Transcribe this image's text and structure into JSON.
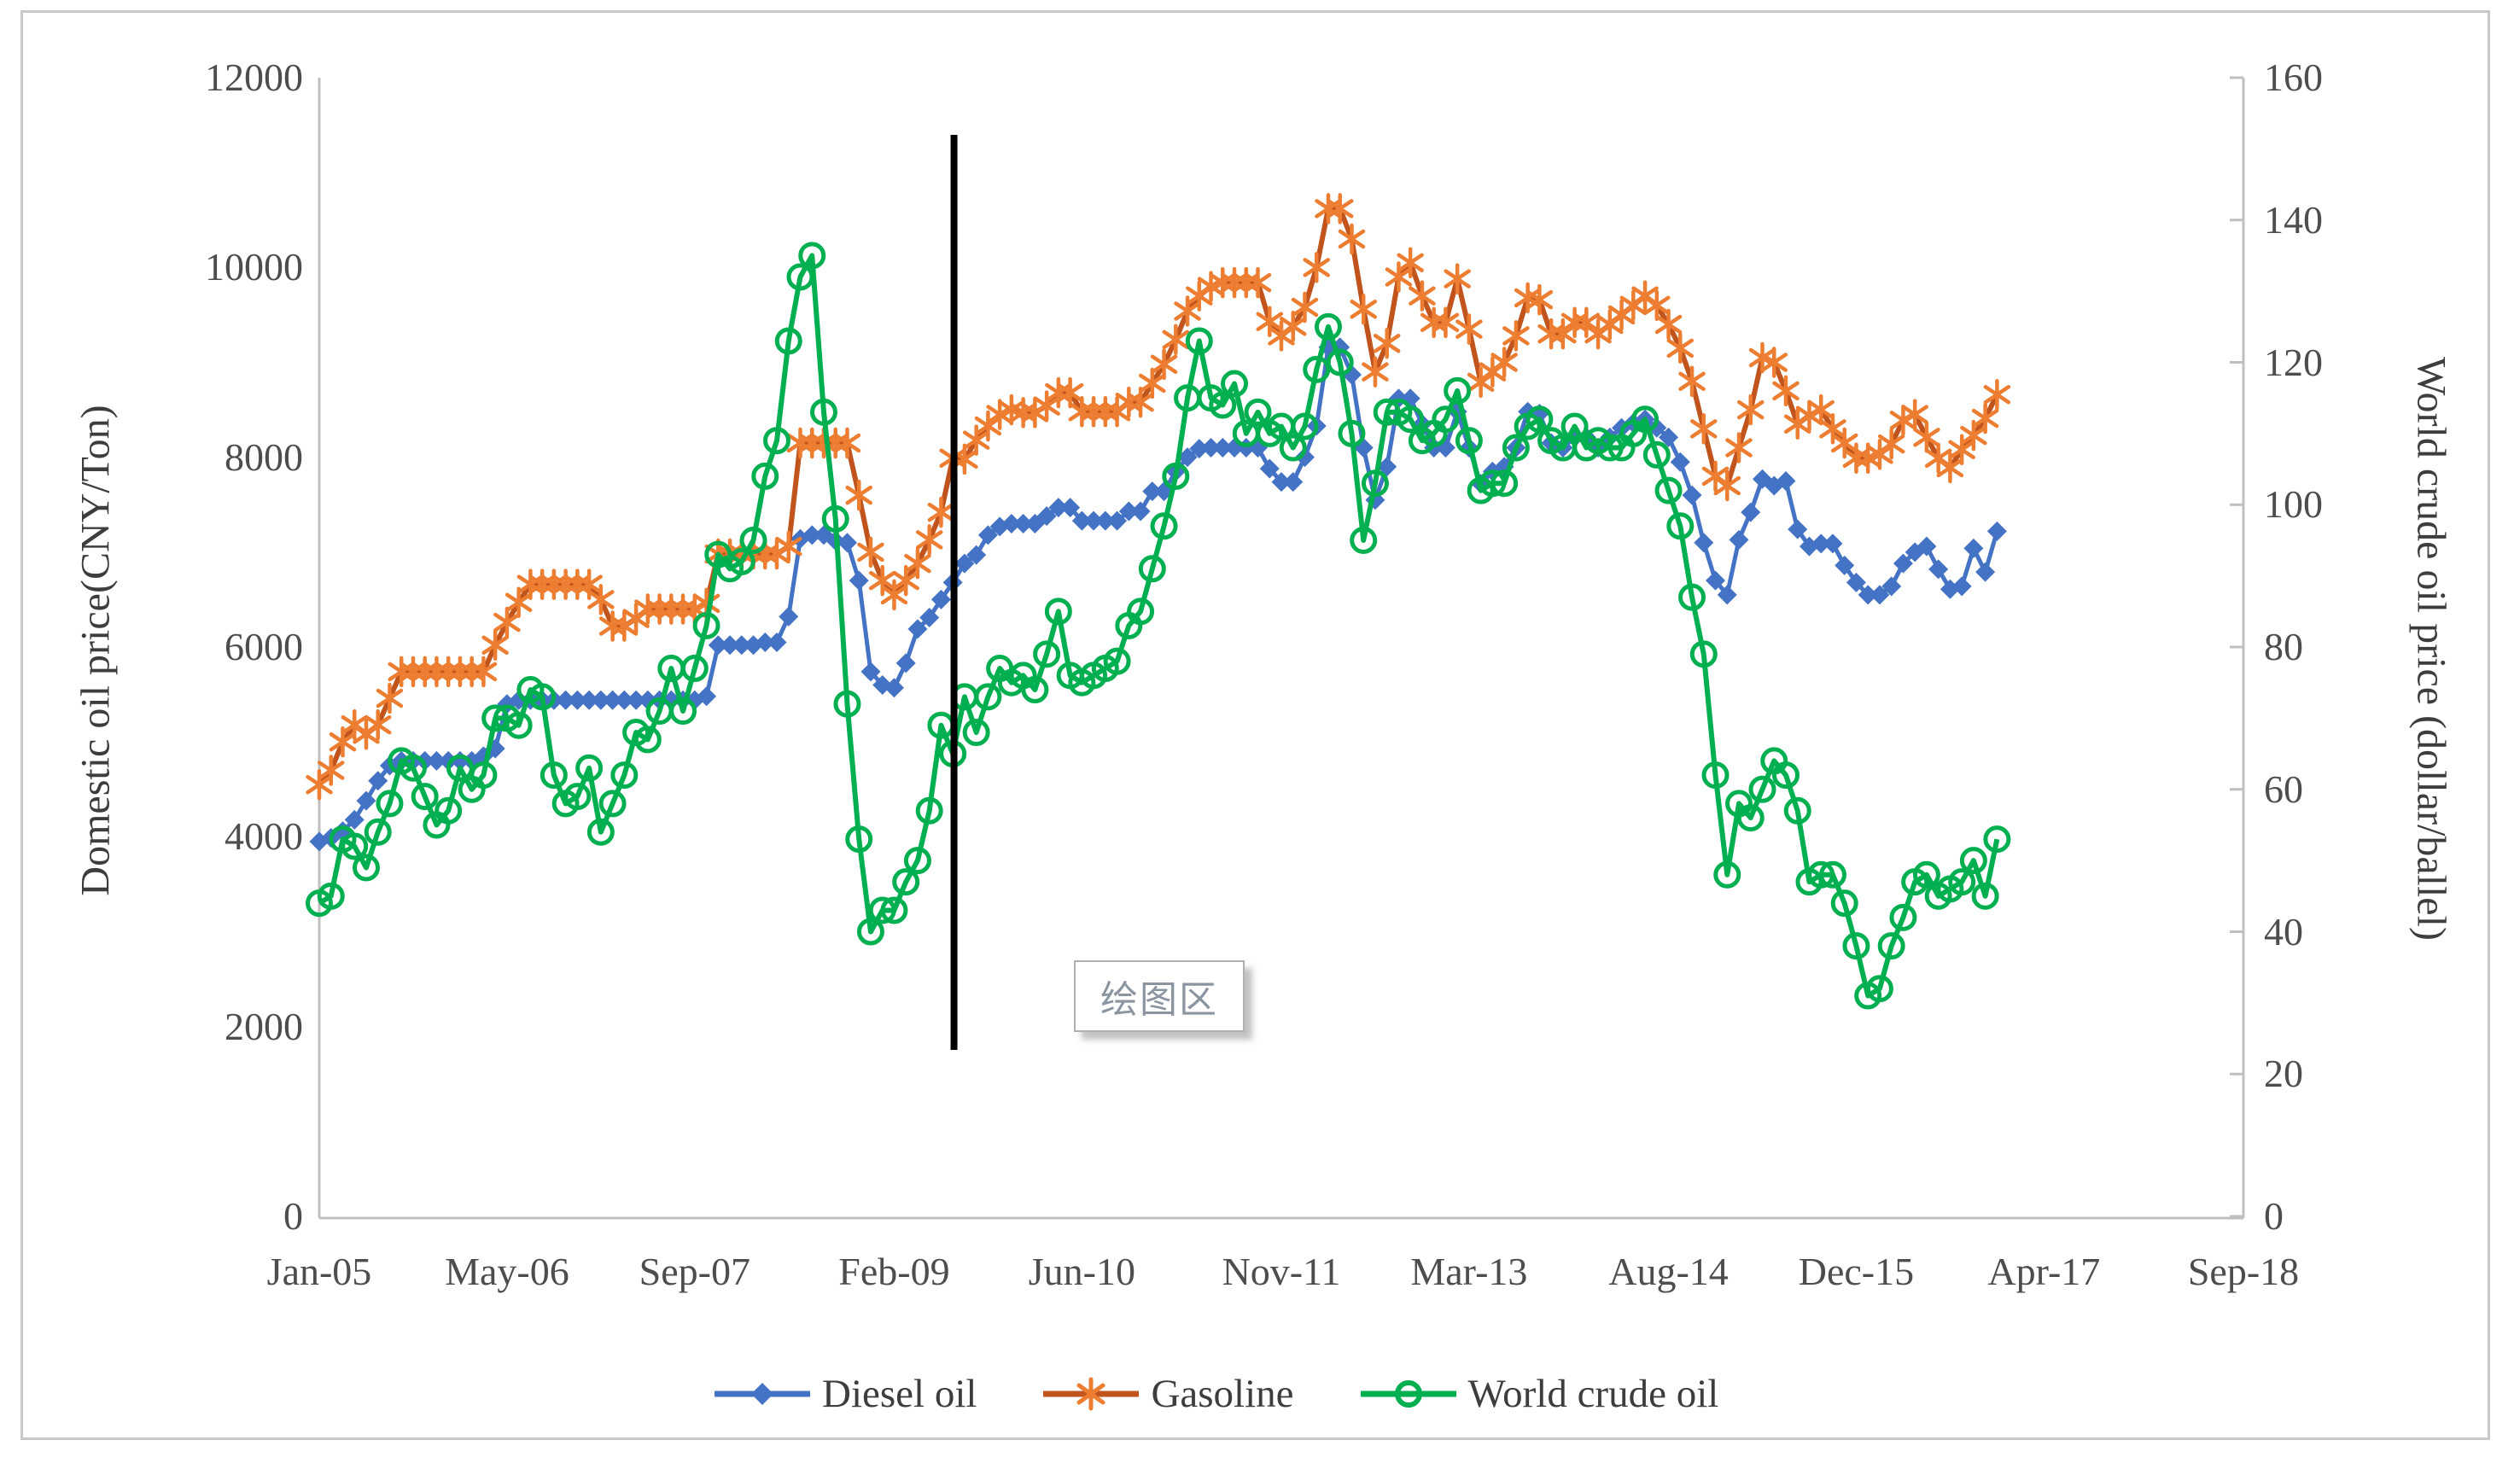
{
  "figure": {
    "background": "#ffffff",
    "border_color": "#c9c9c9",
    "axis_line_color": "#bfbfbf",
    "tick_text_color": "#4d4d4d"
  },
  "tooltip": {
    "text": "绘图区"
  },
  "chart_data": {
    "type": "line",
    "title": "",
    "frequency": "monthly",
    "x_start": "Jan-2005",
    "x_end": "Dec-2016",
    "x_axis_span_months": 164,
    "x_tick_labels": [
      "Jan-05",
      "May-06",
      "Sep-07",
      "Feb-09",
      "Jun-10",
      "Nov-11",
      "Mar-13",
      "Aug-14",
      "Dec-15",
      "Apr-17",
      "Sep-18"
    ],
    "x_tick_month_indices": [
      0,
      16,
      32,
      49,
      65,
      82,
      98,
      115,
      131,
      147,
      164
    ],
    "left_axis": {
      "title": "Domestic oil price(CNY/Ton)",
      "min": 0,
      "max": 12000,
      "step": 2000,
      "tick_labels": [
        "12000",
        "10000",
        "8000",
        "6000",
        "4000",
        "2000",
        "0"
      ]
    },
    "right_axis": {
      "title": "World crude oil price (dollar/ballel)",
      "min": 0,
      "max": 160,
      "step": 20,
      "tick_labels": [
        "160",
        "140",
        "120",
        "100",
        "80",
        "60",
        "40",
        "20",
        "0"
      ]
    },
    "event_line": {
      "month_index": 54.1,
      "color": "#000000"
    },
    "legend_position": "bottom",
    "grid": false,
    "series": [
      {
        "name": "Diesel oil",
        "axis": "left",
        "color": "#4472c4",
        "marker_color": "#4472c4",
        "marker": "diamond",
        "values": [
          3950,
          3990,
          4060,
          4180,
          4380,
          4590,
          4750,
          4800,
          4800,
          4800,
          4800,
          4800,
          4800,
          4800,
          4850,
          4930,
          5400,
          5440,
          5440,
          5440,
          5440,
          5440,
          5440,
          5440,
          5440,
          5440,
          5440,
          5440,
          5440,
          5440,
          5440,
          5440,
          5440,
          5480,
          6020,
          6020,
          6020,
          6020,
          6050,
          6050,
          6320,
          7140,
          7180,
          7180,
          7120,
          7100,
          6700,
          5740,
          5600,
          5570,
          5830,
          6190,
          6310,
          6500,
          6680,
          6880,
          6970,
          7180,
          7270,
          7300,
          7300,
          7300,
          7380,
          7470,
          7470,
          7330,
          7330,
          7330,
          7330,
          7430,
          7430,
          7640,
          7640,
          7850,
          8000,
          8090,
          8100,
          8100,
          8100,
          8100,
          8100,
          7880,
          7740,
          7740,
          8000,
          8330,
          9160,
          9160,
          8870,
          8100,
          7550,
          7900,
          8620,
          8620,
          8350,
          8100,
          8100,
          8480,
          8100,
          7720,
          7850,
          7900,
          8100,
          8480,
          8460,
          8150,
          8100,
          8210,
          8210,
          8100,
          8210,
          8310,
          8360,
          8400,
          8310,
          8210,
          7950,
          7600,
          7100,
          6700,
          6550,
          7130,
          7420,
          7770,
          7700,
          7750,
          7240,
          7060,
          7090,
          7090,
          6860,
          6680,
          6550,
          6550,
          6640,
          6880,
          7000,
          7060,
          6820,
          6610,
          6640,
          7040,
          6790,
          7220
        ]
      },
      {
        "name": "Gasoline",
        "axis": "left",
        "color": "#c0541c",
        "marker_color": "#ed7d31",
        "marker": "star",
        "values": [
          4550,
          4700,
          5000,
          5180,
          5080,
          5180,
          5460,
          5740,
          5740,
          5740,
          5740,
          5740,
          5740,
          5740,
          5740,
          6020,
          6260,
          6470,
          6660,
          6660,
          6660,
          6660,
          6660,
          6660,
          6500,
          6220,
          6220,
          6300,
          6400,
          6400,
          6400,
          6400,
          6400,
          6460,
          6980,
          6980,
          6980,
          6980,
          6980,
          6980,
          7060,
          8150,
          8150,
          8150,
          8150,
          8150,
          7600,
          7000,
          6700,
          6550,
          6700,
          6880,
          7130,
          7420,
          7990,
          7980,
          8180,
          8330,
          8450,
          8500,
          8470,
          8470,
          8540,
          8680,
          8680,
          8480,
          8480,
          8480,
          8480,
          8580,
          8580,
          8780,
          8980,
          9240,
          9540,
          9700,
          9800,
          9840,
          9840,
          9840,
          9840,
          9430,
          9280,
          9380,
          9580,
          10000,
          10620,
          10620,
          10300,
          9560,
          8900,
          9200,
          9900,
          10050,
          9700,
          9420,
          9420,
          9880,
          9350,
          8790,
          8900,
          9000,
          9280,
          9680,
          9660,
          9300,
          9300,
          9420,
          9420,
          9300,
          9400,
          9500,
          9600,
          9700,
          9600,
          9400,
          9150,
          8800,
          8300,
          7800,
          7700,
          8100,
          8500,
          9050,
          9000,
          8700,
          8350,
          8440,
          8500,
          8300,
          8150,
          7990,
          7990,
          8030,
          8140,
          8390,
          8450,
          8210,
          7990,
          7890,
          8080,
          8230,
          8410,
          8660
        ]
      },
      {
        "name": "World crude oil",
        "axis": "right",
        "color": "#00b050",
        "marker_color": "#00b050",
        "marker": "circle",
        "values": [
          44,
          45,
          53,
          52,
          49,
          54,
          58,
          64,
          63,
          59,
          55,
          57,
          63,
          60,
          62,
          70,
          70,
          69,
          74,
          73,
          62,
          58,
          59,
          63,
          54,
          58,
          62,
          68,
          67,
          71,
          77,
          71,
          77,
          83,
          93,
          91,
          92,
          95,
          104,
          109,
          123,
          132,
          135,
          113,
          98,
          72,
          53,
          40,
          43,
          43,
          47,
          50,
          57,
          69,
          65,
          73,
          68,
          73,
          77,
          75,
          76,
          74,
          79,
          85,
          76,
          75,
          76,
          77,
          78,
          83,
          85,
          91,
          97,
          104,
          115,
          123,
          115,
          114,
          117,
          110,
          113,
          110,
          111,
          108,
          111,
          119,
          125,
          120,
          110,
          95,
          103,
          113,
          113,
          112,
          109,
          110,
          112,
          116,
          109,
          102,
          103,
          103,
          108,
          111,
          112,
          109,
          108,
          111,
          108,
          109,
          108,
          108,
          110,
          112,
          107,
          102,
          97,
          87,
          79,
          62,
          48,
          58,
          56,
          60,
          64,
          62,
          57,
          47,
          48,
          48,
          44,
          38,
          31,
          32,
          38,
          42,
          47,
          48,
          45,
          46,
          47,
          50,
          45,
          53
        ]
      }
    ]
  }
}
